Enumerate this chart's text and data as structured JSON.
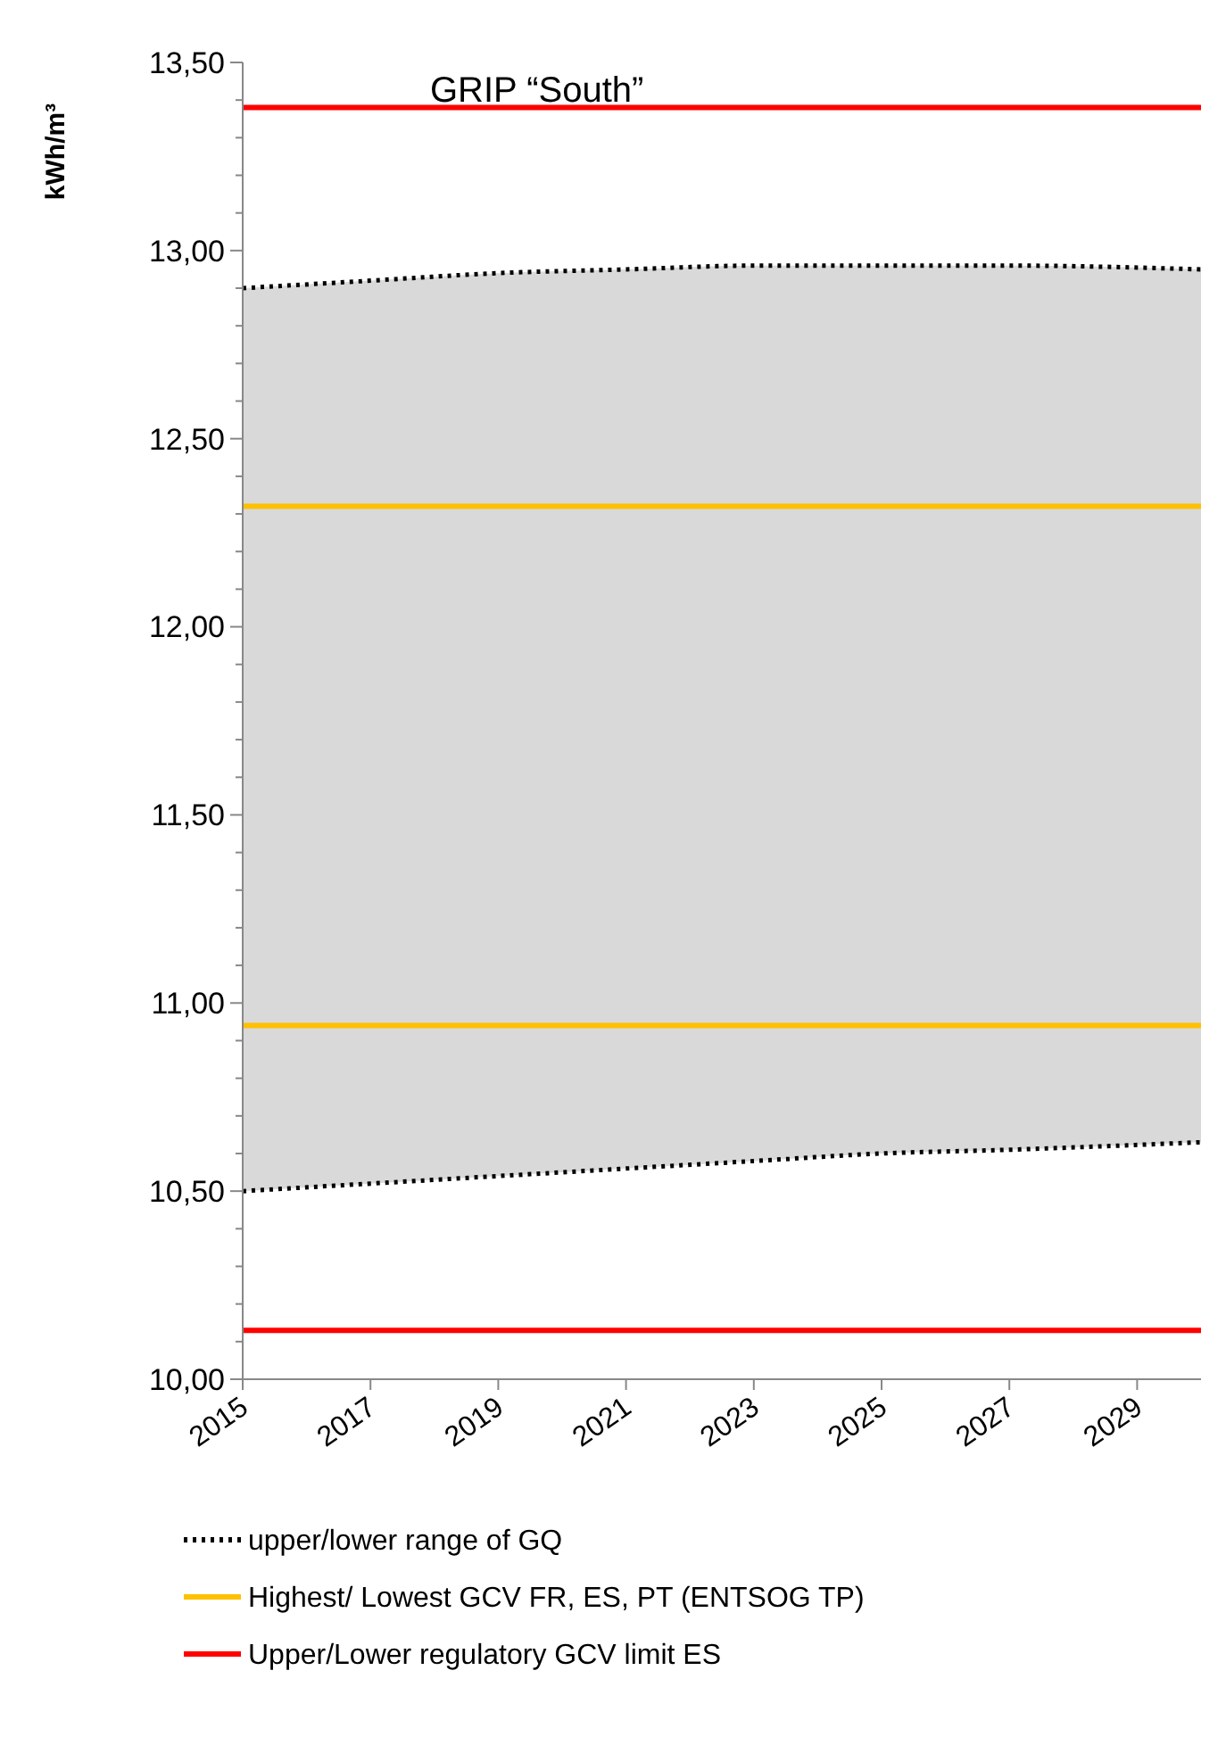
{
  "chart_data": {
    "type": "line",
    "title": "GRIP “South”",
    "ylabel": "kWh/m³",
    "x": [
      2015,
      2017,
      2019,
      2021,
      2023,
      2025,
      2027,
      2030
    ],
    "series": [
      {
        "name": "upper/lower range of GQ",
        "color": "#000000",
        "line_style": "dotted",
        "values": [
          12.9,
          12.92,
          12.94,
          12.95,
          12.96,
          12.96,
          12.96,
          12.95
        ],
        "lower": [
          10.5,
          10.52,
          10.54,
          10.56,
          10.58,
          10.6,
          10.61,
          10.63
        ],
        "upper": [
          12.9,
          12.92,
          12.94,
          12.95,
          12.96,
          12.96,
          12.96,
          12.95
        ]
      },
      {
        "color": "#000000",
        "line_style": "dotted",
        "values": [
          10.5,
          10.52,
          10.54,
          10.56,
          10.58,
          10.6,
          10.61,
          10.63
        ]
      }
    ],
    "ref_lines": [
      {
        "axis": "y",
        "value": 12.32,
        "label": "Highest/ Lowest GCV FR, ES, PT (ENTSOG TP)",
        "color": "#ffc000"
      },
      {
        "axis": "y",
        "value": 10.94,
        "label": null,
        "color": "#ffc000"
      },
      {
        "axis": "y",
        "value": 13.38,
        "label": "Upper/Lower regulatory GCV limit  ES",
        "color": "#ff0000"
      },
      {
        "axis": "y",
        "value": 10.13,
        "label": null,
        "color": "#ff0000"
      }
    ],
    "xlim": [
      2015,
      2030
    ],
    "xticks": [
      2015,
      2017,
      2019,
      2021,
      2023,
      2025,
      2027,
      2029
    ],
    "ylim": [
      10,
      13.5
    ],
    "yticks": [
      {
        "value": 10,
        "label": "10,00"
      },
      {
        "value": 10.1,
        "label": null
      },
      {
        "value": 10.2,
        "label": null
      },
      {
        "value": 10.3,
        "label": null
      },
      {
        "value": 10.4,
        "label": null
      },
      {
        "value": 10.5,
        "label": "10,50"
      },
      {
        "value": 10.6,
        "label": null
      },
      {
        "value": 10.7,
        "label": null
      },
      {
        "value": 10.8,
        "label": null
      },
      {
        "value": 10.9,
        "label": null
      },
      {
        "value": 11,
        "label": "11,00"
      },
      {
        "value": 11.1,
        "label": null
      },
      {
        "value": 11.2,
        "label": null
      },
      {
        "value": 11.3,
        "label": null
      },
      {
        "value": 11.4,
        "label": null
      },
      {
        "value": 11.5,
        "label": "11,50"
      },
      {
        "value": 11.6,
        "label": null
      },
      {
        "value": 11.7,
        "label": null
      },
      {
        "value": 11.8,
        "label": null
      },
      {
        "value": 11.9,
        "label": null
      },
      {
        "value": 12,
        "label": "12,00"
      },
      {
        "value": 12.1,
        "label": null
      },
      {
        "value": 12.2,
        "label": null
      },
      {
        "value": 12.3,
        "label": null
      },
      {
        "value": 12.4,
        "label": null
      },
      {
        "value": 12.5,
        "label": "12,50"
      },
      {
        "value": 12.6,
        "label": null
      },
      {
        "value": 12.7,
        "label": null
      },
      {
        "value": 12.8,
        "label": null
      },
      {
        "value": 12.9,
        "label": null
      },
      {
        "value": 13,
        "label": "13,00"
      },
      {
        "value": 13.1,
        "label": null
      },
      {
        "value": 13.2,
        "label": null
      },
      {
        "value": 13.3,
        "label": null
      },
      {
        "value": 13.4,
        "label": null
      },
      {
        "value": 13.5,
        "label": "13,50"
      }
    ],
    "grid": false,
    "legend": "bottom"
  }
}
